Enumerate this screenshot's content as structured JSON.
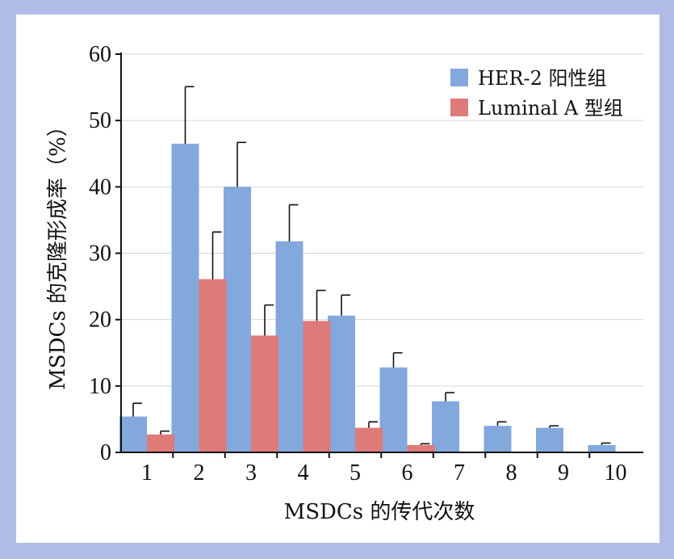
{
  "chart_data": {
    "type": "bar",
    "title": "",
    "xlabel": "MSDCs 的传代次数",
    "ylabel": "MSDCs 的克隆形成率（%）",
    "ylim": [
      0,
      60
    ],
    "yticks": [
      0,
      10,
      20,
      30,
      40,
      50,
      60
    ],
    "categories": [
      "1",
      "2",
      "3",
      "4",
      "5",
      "6",
      "7",
      "8",
      "9",
      "10"
    ],
    "grid": true,
    "legend": "top-right",
    "series": [
      {
        "name": "HER-2 阳性组",
        "color": "#83a8dc",
        "values": [
          5.4,
          46.5,
          40.0,
          31.8,
          20.6,
          12.8,
          7.7,
          4.0,
          3.7,
          1.1
        ],
        "errors": [
          2.0,
          8.6,
          6.7,
          5.5,
          3.1,
          2.2,
          1.3,
          0.6,
          0.3,
          0.3
        ]
      },
      {
        "name": "Luminal A 型组",
        "color": "#de7b78",
        "values": [
          2.7,
          26.1,
          17.6,
          19.8,
          3.7,
          1.1,
          null,
          null,
          null,
          null
        ],
        "errors": [
          0.5,
          7.1,
          4.6,
          4.6,
          0.9,
          0.2,
          null,
          null,
          null,
          null
        ]
      }
    ]
  }
}
